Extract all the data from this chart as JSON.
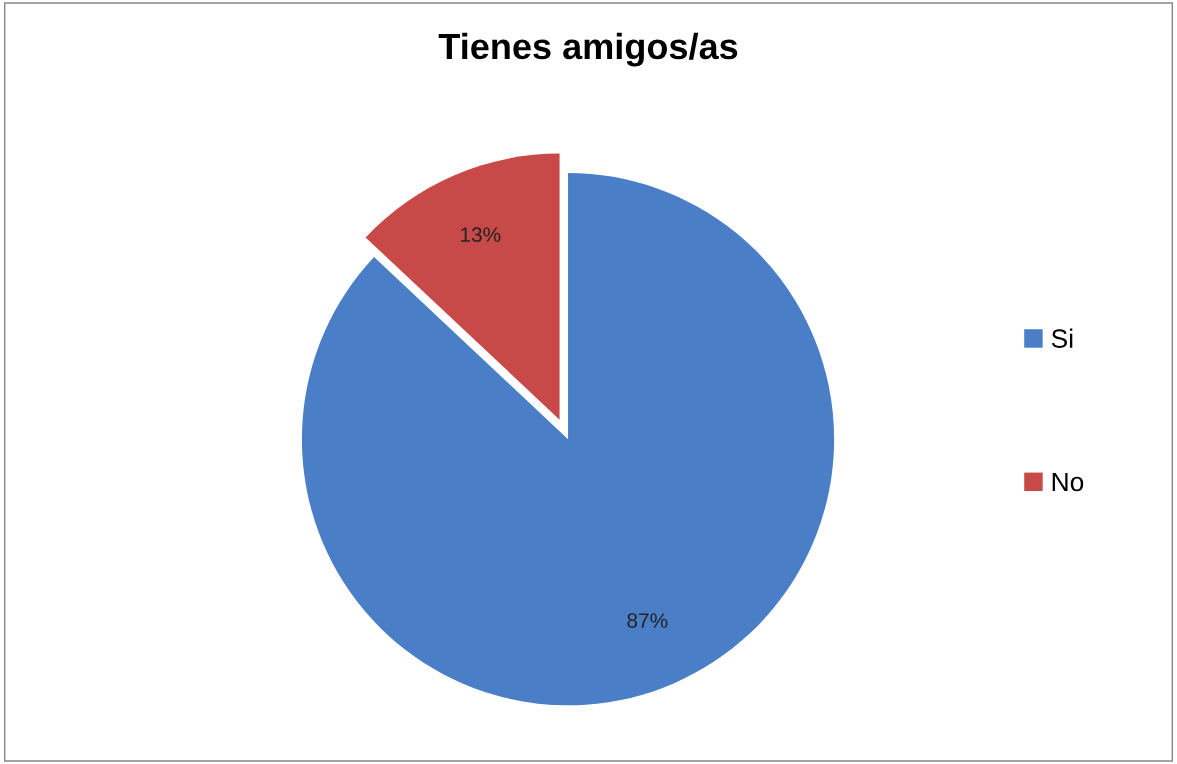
{
  "chart_data": {
    "type": "pie",
    "title": "Tienes amigos/as",
    "categories": [
      "Si",
      "No"
    ],
    "values": [
      87,
      13
    ],
    "colors": [
      "#4a7fc8",
      "#c84a48"
    ],
    "value_labels": [
      "87%",
      "13%"
    ],
    "legend": "right"
  }
}
